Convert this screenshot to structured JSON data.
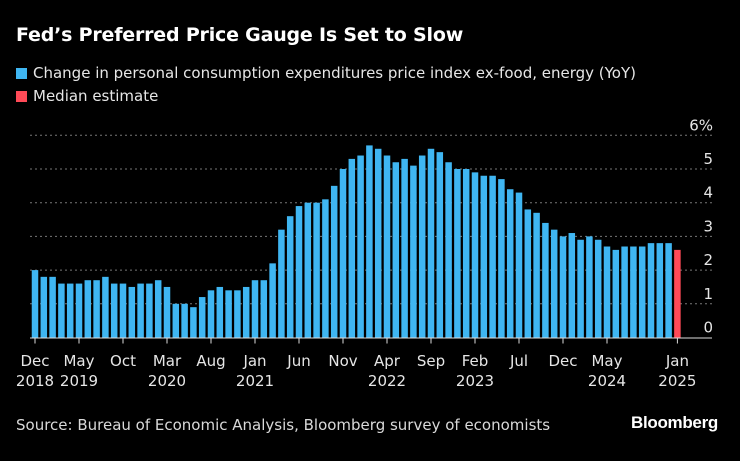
{
  "chart_data": {
    "type": "bar",
    "title": "Fed’s Preferred Price Gauge Is Set to Slow",
    "series": [
      {
        "name": "Change in personal consumption expenditures price index ex-food, energy (YoY)",
        "color": "#3fb6f2"
      },
      {
        "name": "Median estimate",
        "color": "#ff4a57"
      }
    ],
    "start_month": "Dec 2018",
    "end_month": "Jan 2025",
    "values": [
      2.0,
      1.8,
      1.8,
      1.6,
      1.6,
      1.6,
      1.7,
      1.7,
      1.8,
      1.6,
      1.6,
      1.5,
      1.6,
      1.6,
      1.7,
      1.5,
      1.0,
      1.0,
      0.9,
      1.2,
      1.4,
      1.5,
      1.4,
      1.4,
      1.5,
      1.7,
      1.7,
      2.2,
      3.2,
      3.6,
      3.9,
      4.0,
      4.0,
      4.1,
      4.5,
      5.0,
      5.3,
      5.4,
      5.7,
      5.6,
      5.4,
      5.2,
      5.3,
      5.1,
      5.4,
      5.6,
      5.5,
      5.2,
      5.0,
      5.0,
      4.9,
      4.8,
      4.8,
      4.7,
      4.4,
      4.3,
      3.8,
      3.7,
      3.4,
      3.2,
      3.0,
      3.1,
      2.9,
      3.0,
      2.9,
      2.7,
      2.6,
      2.7,
      2.7,
      2.7,
      2.8,
      2.8,
      2.8,
      2.6
    ],
    "estimate_index": 73,
    "ylim": [
      0,
      6
    ],
    "yticks": [
      "0",
      "1",
      "2",
      "3",
      "4",
      "5",
      "6%"
    ],
    "xticks": [
      {
        "index": 0,
        "month": "Dec",
        "year": "2018"
      },
      {
        "index": 5,
        "month": "May",
        "year": "2019"
      },
      {
        "index": 10,
        "month": "Oct",
        "year": ""
      },
      {
        "index": 15,
        "month": "Mar",
        "year": "2020"
      },
      {
        "index": 20,
        "month": "Aug",
        "year": ""
      },
      {
        "index": 25,
        "month": "Jan",
        "year": "2021"
      },
      {
        "index": 30,
        "month": "Jun",
        "year": ""
      },
      {
        "index": 35,
        "month": "Nov",
        "year": ""
      },
      {
        "index": 40,
        "month": "Apr",
        "year": "2022"
      },
      {
        "index": 45,
        "month": "Sep",
        "year": ""
      },
      {
        "index": 50,
        "month": "Feb",
        "year": "2023"
      },
      {
        "index": 55,
        "month": "Jul",
        "year": ""
      },
      {
        "index": 60,
        "month": "Dec",
        "year": ""
      },
      {
        "index": 65,
        "month": "May",
        "year": "2024"
      },
      {
        "index": 73,
        "month": "Jan",
        "year": "2025"
      }
    ],
    "grid": true,
    "legend_placement": "top-left"
  },
  "source": "Source: Bureau of Economic Analysis, Bloomberg survey of economists",
  "logo": "Bloomberg"
}
